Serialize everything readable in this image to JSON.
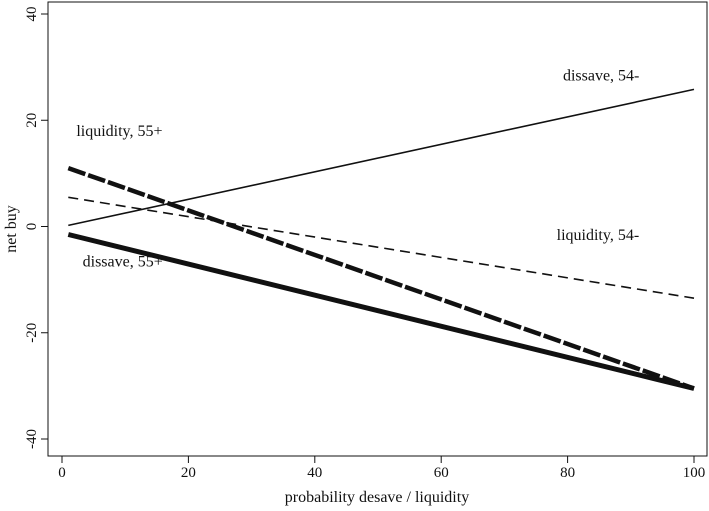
{
  "chart_data": {
    "type": "line",
    "title": "",
    "xlabel": "probability desave / liquidity",
    "ylabel": "net buy",
    "xlim": [
      0,
      100
    ],
    "ylim": [
      -40,
      40
    ],
    "xticks": [
      0,
      20,
      40,
      60,
      80,
      100
    ],
    "yticks": [
      -40,
      -20,
      0,
      20,
      40
    ],
    "grid": false,
    "series": [
      {
        "name": "dissave, 54-",
        "style": "thin-solid",
        "x": [
          1,
          100
        ],
        "y": [
          0.2,
          25.8
        ]
      },
      {
        "name": "liquidity, 55+",
        "style": "thick-dashed",
        "x": [
          1,
          100
        ],
        "y": [
          11,
          -30.5
        ]
      },
      {
        "name": "liquidity, 54-",
        "style": "thin-dashed",
        "x": [
          1,
          100
        ],
        "y": [
          5.5,
          -13.5
        ]
      },
      {
        "name": "dissave, 55+",
        "style": "thick-solid",
        "x": [
          1,
          100
        ],
        "y": [
          -1.5,
          -30.5
        ]
      }
    ],
    "annotations": [
      {
        "text": "dissave, 54-",
        "x": 78,
        "y": 27.5
      },
      {
        "text": "liquidity, 55+",
        "x": 1,
        "y": 17
      },
      {
        "text": "liquidity, 54-",
        "x": 77,
        "y": -2.5
      },
      {
        "text": "dissave, 55+",
        "x": 2,
        "y": -7.5
      }
    ]
  }
}
